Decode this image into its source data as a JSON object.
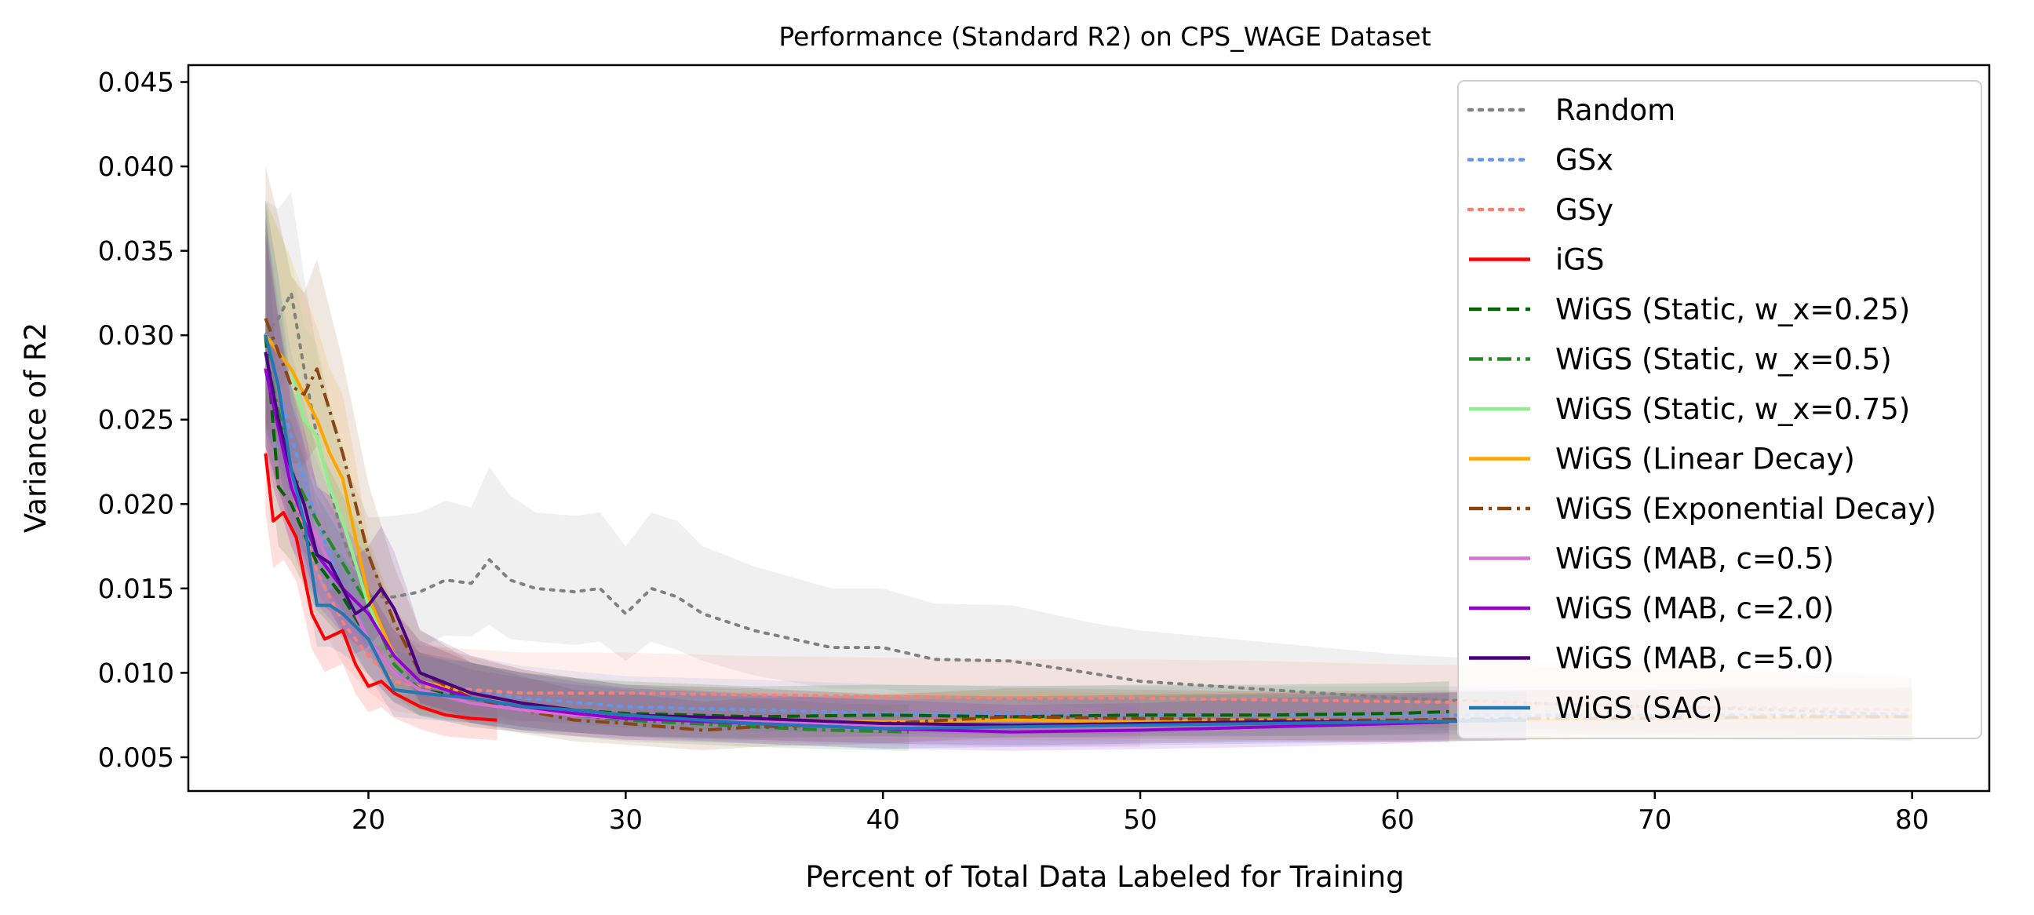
{
  "chart_data": {
    "type": "line",
    "title": "Performance (Standard R2) on CPS_WAGE Dataset",
    "xlabel": "Percent of Total Data Labeled for Training",
    "ylabel": "Variance of R2",
    "xlim": [
      13,
      83
    ],
    "ylim": [
      0.003,
      0.046
    ],
    "xticks": [
      20,
      30,
      40,
      50,
      60,
      70,
      80
    ],
    "yticks": [
      0.005,
      0.01,
      0.015,
      0.02,
      0.025,
      0.03,
      0.035,
      0.04,
      0.045
    ],
    "xtick_labels": [
      "20",
      "30",
      "40",
      "50",
      "60",
      "70",
      "80"
    ],
    "ytick_labels": [
      "0.005",
      "0.010",
      "0.015",
      "0.020",
      "0.025",
      "0.030",
      "0.035",
      "0.040",
      "0.045"
    ],
    "grid": false,
    "legend_position": "top-right",
    "series": [
      {
        "name": "Random",
        "color": "#808080",
        "dash": "dotted",
        "x": [
          16,
          16.5,
          17,
          17.5,
          18,
          19,
          20,
          21,
          22,
          23,
          24,
          24.7,
          25.5,
          26.5,
          28,
          29,
          30,
          31,
          32,
          33,
          35,
          38,
          40,
          42,
          45,
          48,
          50,
          55,
          60,
          65,
          70,
          75,
          80
        ],
        "y": [
          0.03,
          0.031,
          0.0325,
          0.028,
          0.024,
          0.018,
          0.0145,
          0.0145,
          0.0148,
          0.0155,
          0.0153,
          0.0167,
          0.0155,
          0.015,
          0.0148,
          0.015,
          0.0135,
          0.015,
          0.0145,
          0.0135,
          0.0125,
          0.0115,
          0.0115,
          0.0108,
          0.0107,
          0.01,
          0.0095,
          0.009,
          0.0085,
          0.0082,
          0.008,
          0.0078,
          0.0075
        ],
        "band": [
          0.008,
          0.0065,
          0.006,
          0.0055,
          0.005,
          0.0048,
          0.0047,
          0.0048,
          0.0047,
          0.0047,
          0.0045,
          0.0055,
          0.005,
          0.0045,
          0.0045,
          0.0045,
          0.004,
          0.0045,
          0.0045,
          0.004,
          0.0038,
          0.0035,
          0.0035,
          0.0033,
          0.0033,
          0.003,
          0.003,
          0.0028,
          0.0026,
          0.0025,
          0.0024,
          0.0023,
          0.0022
        ]
      },
      {
        "name": "GSx",
        "color": "#6495ED",
        "dash": "dotted",
        "x": [
          16,
          17,
          18,
          19,
          20,
          21,
          22,
          24,
          26,
          30,
          35,
          40,
          50,
          60,
          70,
          80
        ],
        "y": [
          0.03,
          0.024,
          0.019,
          0.015,
          0.012,
          0.01,
          0.0095,
          0.009,
          0.0085,
          0.008,
          0.0078,
          0.0076,
          0.0075,
          0.0075,
          0.0075,
          0.0075
        ],
        "band": [
          0.008,
          0.005,
          0.004,
          0.0035,
          0.003,
          0.0025,
          0.0022,
          0.002,
          0.0019,
          0.0018,
          0.0018,
          0.0017,
          0.0017,
          0.0017,
          0.0017,
          0.0017
        ]
      },
      {
        "name": "GSy",
        "color": "#FA8072",
        "dash": "dotted",
        "x": [
          16,
          17,
          18,
          19,
          20,
          21,
          22,
          24,
          26,
          28,
          30,
          35,
          40,
          45,
          50,
          55,
          60,
          65,
          70,
          80
        ],
        "y": [
          0.028,
          0.021,
          0.016,
          0.013,
          0.011,
          0.0095,
          0.0092,
          0.009,
          0.0088,
          0.0088,
          0.0088,
          0.0087,
          0.0086,
          0.0085,
          0.0085,
          0.0084,
          0.0083,
          0.0082,
          0.008,
          0.0078
        ],
        "band": [
          0.008,
          0.005,
          0.004,
          0.0035,
          0.003,
          0.0025,
          0.0024,
          0.0024,
          0.0024,
          0.0024,
          0.0024,
          0.0023,
          0.0023,
          0.0023,
          0.0023,
          0.0023,
          0.0022,
          0.0022,
          0.0022,
          0.0021
        ]
      },
      {
        "name": "iGS",
        "color": "#FF0000",
        "dash": "solid",
        "x": [
          16,
          16.3,
          16.7,
          17.2,
          17.8,
          18.3,
          19,
          19.5,
          20,
          20.5,
          21,
          22,
          23,
          24,
          25
        ],
        "y": [
          0.023,
          0.019,
          0.0195,
          0.018,
          0.0135,
          0.012,
          0.0125,
          0.0105,
          0.0092,
          0.0095,
          0.0088,
          0.008,
          0.0075,
          0.0073,
          0.0072
        ],
        "band": [
          0.005,
          0.004,
          0.004,
          0.0037,
          0.003,
          0.0028,
          0.0028,
          0.0025,
          0.0022,
          0.0022,
          0.0021,
          0.0019,
          0.0018,
          0.0017,
          0.0017
        ]
      },
      {
        "name": "WiGS (Static, w_x=0.25)",
        "color": "#006400",
        "dash": "dashed",
        "x": [
          16,
          16.5,
          17,
          18,
          19,
          20,
          21,
          22,
          24,
          26,
          28,
          30,
          35,
          40,
          45,
          50,
          55,
          60,
          62
        ],
        "y": [
          0.03,
          0.021,
          0.02,
          0.0165,
          0.0145,
          0.012,
          0.01,
          0.009,
          0.0085,
          0.008,
          0.0078,
          0.0076,
          0.0074,
          0.0075,
          0.0074,
          0.0075,
          0.0075,
          0.0076,
          0.0077
        ],
        "band": [
          0.008,
          0.005,
          0.0048,
          0.004,
          0.0035,
          0.003,
          0.0025,
          0.0022,
          0.0021,
          0.002,
          0.0019,
          0.0019,
          0.0018,
          0.0018,
          0.0018,
          0.0018,
          0.0018,
          0.0018,
          0.0018
        ]
      },
      {
        "name": "WiGS (Static, w_x=0.5)",
        "color": "#228B22",
        "dash": "dashdot",
        "x": [
          16,
          17,
          18,
          19,
          20,
          21,
          22,
          24,
          26,
          28,
          30,
          35,
          38,
          41
        ],
        "y": [
          0.029,
          0.022,
          0.019,
          0.0165,
          0.014,
          0.0105,
          0.009,
          0.0082,
          0.0078,
          0.0075,
          0.0072,
          0.0068,
          0.0066,
          0.0065
        ],
        "band": [
          0.008,
          0.005,
          0.0045,
          0.004,
          0.0035,
          0.0026,
          0.0022,
          0.002,
          0.0019,
          0.0018,
          0.0018,
          0.0017,
          0.0016,
          0.0016
        ]
      },
      {
        "name": "WiGS (Static, w_x=0.75)",
        "color": "#90EE90",
        "dash": "solid",
        "x": [
          16,
          17,
          17.5,
          18,
          18.5,
          19,
          20,
          21,
          22,
          24,
          26,
          28,
          30,
          35
        ],
        "y": [
          0.03,
          0.028,
          0.025,
          0.024,
          0.021,
          0.019,
          0.014,
          0.011,
          0.0095,
          0.0085,
          0.008,
          0.0076,
          0.0074,
          0.0072
        ],
        "band": [
          0.008,
          0.0065,
          0.0055,
          0.0055,
          0.005,
          0.0045,
          0.0035,
          0.0028,
          0.0024,
          0.0021,
          0.002,
          0.0019,
          0.0018,
          0.0018
        ]
      },
      {
        "name": "WiGS (Linear Decay)",
        "color": "#FFA500",
        "dash": "solid",
        "x": [
          16,
          17,
          18,
          18.5,
          19,
          19.5,
          20,
          21,
          22,
          24,
          26,
          28,
          30,
          35,
          40,
          45,
          50,
          55,
          60,
          65,
          70,
          75,
          80
        ],
        "y": [
          0.03,
          0.028,
          0.025,
          0.023,
          0.0215,
          0.018,
          0.0145,
          0.011,
          0.0095,
          0.0088,
          0.0082,
          0.0078,
          0.0075,
          0.0072,
          0.0071,
          0.0072,
          0.0071,
          0.0072,
          0.0071,
          0.0072,
          0.0073,
          0.0073,
          0.0074
        ],
        "band": [
          0.008,
          0.0065,
          0.0055,
          0.005,
          0.005,
          0.0045,
          0.0035,
          0.0028,
          0.0024,
          0.0021,
          0.002,
          0.0019,
          0.0018,
          0.0018,
          0.0017,
          0.0017,
          0.0017,
          0.0017,
          0.0017,
          0.0017,
          0.0017,
          0.0017,
          0.0017
        ]
      },
      {
        "name": "WiGS (Exponential Decay)",
        "color": "#8B4513",
        "dash": "dashdot",
        "x": [
          16,
          16.5,
          17,
          17.5,
          18,
          19,
          20,
          21,
          22,
          24,
          26,
          28,
          30,
          33,
          35,
          40,
          45,
          50,
          55,
          60,
          65,
          70,
          75,
          80
        ],
        "y": [
          0.031,
          0.029,
          0.027,
          0.0265,
          0.028,
          0.023,
          0.017,
          0.013,
          0.01,
          0.0085,
          0.0078,
          0.0072,
          0.007,
          0.0066,
          0.0068,
          0.007,
          0.0074,
          0.0073,
          0.0072,
          0.0072,
          0.0073,
          0.0073,
          0.0074,
          0.0074
        ],
        "band": [
          0.009,
          0.008,
          0.0065,
          0.006,
          0.0065,
          0.0055,
          0.0042,
          0.0033,
          0.0026,
          0.0021,
          0.002,
          0.0018,
          0.0018,
          0.0017,
          0.0017,
          0.0017,
          0.0017,
          0.0017,
          0.0017,
          0.0017,
          0.0017,
          0.0017,
          0.0017,
          0.0017
        ]
      },
      {
        "name": "WiGS (MAB, c=0.5)",
        "color": "#DA70D6",
        "dash": "solid",
        "x": [
          16,
          17,
          18,
          19,
          20,
          21,
          22,
          24,
          26,
          28,
          30,
          35,
          40,
          45,
          50
        ],
        "y": [
          0.029,
          0.021,
          0.018,
          0.015,
          0.012,
          0.01,
          0.009,
          0.0082,
          0.0078,
          0.0075,
          0.0073,
          0.0071,
          0.0069,
          0.0068,
          0.0068
        ],
        "band": [
          0.008,
          0.005,
          0.0045,
          0.0038,
          0.003,
          0.0025,
          0.0022,
          0.002,
          0.0019,
          0.0018,
          0.0018,
          0.0017,
          0.0017,
          0.0017,
          0.0017
        ]
      },
      {
        "name": "WiGS (MAB, c=2.0)",
        "color": "#9400D3",
        "dash": "solid",
        "x": [
          16,
          17,
          18,
          19,
          20,
          21,
          22,
          24,
          26,
          28,
          30,
          35,
          40,
          45,
          50,
          55,
          60,
          62
        ],
        "y": [
          0.028,
          0.021,
          0.017,
          0.015,
          0.0135,
          0.011,
          0.0095,
          0.0085,
          0.008,
          0.0076,
          0.0073,
          0.007,
          0.0067,
          0.0065,
          0.0066,
          0.0068,
          0.007,
          0.0071
        ],
        "band": [
          0.008,
          0.005,
          0.0042,
          0.0038,
          0.0034,
          0.0027,
          0.0024,
          0.0021,
          0.002,
          0.0019,
          0.0018,
          0.0017,
          0.0017,
          0.0016,
          0.0016,
          0.0017,
          0.0017,
          0.0017
        ]
      },
      {
        "name": "WiGS (MAB, c=5.0)",
        "color": "#4B0082",
        "dash": "solid",
        "x": [
          16,
          16.5,
          17,
          17.5,
          18,
          18.5,
          19,
          19.5,
          20,
          20.5,
          21,
          21.5,
          22,
          24,
          26,
          28,
          30,
          35,
          40,
          45,
          50,
          55,
          60,
          65
        ],
        "y": [
          0.029,
          0.025,
          0.022,
          0.02,
          0.017,
          0.0165,
          0.015,
          0.0135,
          0.014,
          0.015,
          0.0138,
          0.012,
          0.01,
          0.0088,
          0.0082,
          0.0078,
          0.0075,
          0.0073,
          0.007,
          0.0069,
          0.007,
          0.0071,
          0.0071,
          0.0072
        ],
        "band": [
          0.008,
          0.006,
          0.005,
          0.0045,
          0.004,
          0.004,
          0.0037,
          0.0034,
          0.0035,
          0.0037,
          0.0034,
          0.003,
          0.0025,
          0.0022,
          0.002,
          0.0019,
          0.0018,
          0.0018,
          0.0017,
          0.0017,
          0.0017,
          0.0017,
          0.0017,
          0.0017
        ]
      },
      {
        "name": "WiGS (SAC)",
        "color": "#1F77B4",
        "dash": "solid",
        "x": [
          16,
          16.5,
          17,
          17.5,
          18,
          18.5,
          19,
          20,
          21,
          22,
          24,
          26,
          28,
          30,
          35,
          40,
          45,
          50,
          55,
          60,
          65
        ],
        "y": [
          0.03,
          0.027,
          0.022,
          0.019,
          0.014,
          0.014,
          0.0135,
          0.012,
          0.009,
          0.0088,
          0.0085,
          0.008,
          0.0078,
          0.0075,
          0.007,
          0.0067,
          0.0068,
          0.0069,
          0.007,
          0.0071,
          0.0072
        ],
        "band": [
          0.008,
          0.0065,
          0.005,
          0.0045,
          0.0035,
          0.0035,
          0.0034,
          0.003,
          0.0023,
          0.0022,
          0.0021,
          0.002,
          0.0019,
          0.0018,
          0.0017,
          0.0017,
          0.0017,
          0.0017,
          0.0017,
          0.0017,
          0.0017
        ]
      }
    ]
  }
}
